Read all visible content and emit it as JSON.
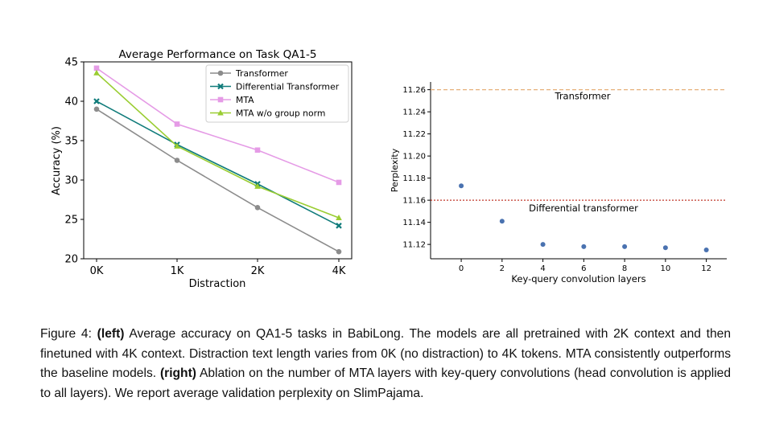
{
  "chart_data": [
    {
      "type": "line",
      "title": "Average Performance on Task QA1-5",
      "xlabel": "Distraction",
      "ylabel": "Accuracy (%)",
      "categories": [
        "0K",
        "1K",
        "2K",
        "4K"
      ],
      "ylim": [
        20,
        45
      ],
      "yticks": [
        "20",
        "25",
        "30",
        "35",
        "40",
        "45"
      ],
      "legend_position": "top-right",
      "series": [
        {
          "name": "Transformer",
          "color": "#8c8c8c",
          "marker": "circle",
          "values": [
            39.0,
            32.5,
            26.5,
            20.9
          ]
        },
        {
          "name": "Differential Transformer",
          "color": "#0f7b7a",
          "marker": "x",
          "values": [
            40.0,
            34.5,
            29.5,
            24.2
          ]
        },
        {
          "name": "MTA",
          "color": "#e59be6",
          "marker": "square",
          "values": [
            44.2,
            37.1,
            33.8,
            29.7
          ]
        },
        {
          "name": "MTA w/o group norm",
          "color": "#9acd32",
          "marker": "triangle",
          "values": [
            43.6,
            34.3,
            29.2,
            25.2
          ]
        }
      ]
    },
    {
      "type": "scatter",
      "title": "",
      "xlabel": "Key-query convolution layers",
      "ylabel": "Perplexity",
      "xticks": [
        "0",
        "2",
        "4",
        "6",
        "8",
        "10",
        "12"
      ],
      "yticks": [
        "11.12",
        "11.14",
        "11.16",
        "11.18",
        "11.20",
        "11.22",
        "11.24",
        "11.26"
      ],
      "xlim": [
        -1.5,
        13
      ],
      "ylim": [
        11.107,
        11.267
      ],
      "point_color": "#4a72b0",
      "x": [
        0,
        2,
        4,
        6,
        8,
        10,
        12
      ],
      "y": [
        11.173,
        11.141,
        11.12,
        11.118,
        11.118,
        11.117,
        11.115
      ],
      "reference_lines": [
        {
          "label": "Transformer",
          "value": 11.26,
          "color": "#e6b07a",
          "style": "dashed"
        },
        {
          "label": "Differential transformer",
          "value": 11.16,
          "color": "#c0392b",
          "style": "dotted"
        }
      ]
    }
  ],
  "caption": {
    "figure_label": "Figure 4:",
    "left_tag": "(left)",
    "left_text": " Average accuracy on QA1-5 tasks in BabiLong. The models are all pretrained with 2K context and then finetuned with 4K context. Distraction text length varies from 0K (no distraction) to 4K tokens. MTA consistently outperforms the baseline models. ",
    "right_tag": "(right)",
    "right_text": " Ablation on the number of MTA layers with key-query convolutions (head convolution is applied to all layers). We report average validation perplexity on SlimPajama."
  }
}
